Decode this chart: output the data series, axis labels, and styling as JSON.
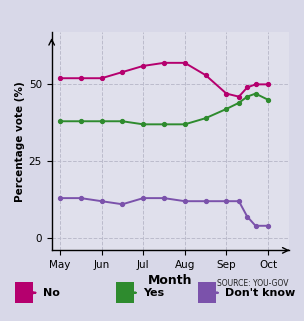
{
  "title": "",
  "xlabel": "Month",
  "ylabel": "Percentage vote (%)",
  "source_text": "SOURCE: YOU-GOV",
  "background_color": "#d8d8e8",
  "plot_bg_color": "#e0e0ec",
  "x_labels": [
    "May",
    "Jun",
    "Jul",
    "Aug",
    "Sep",
    "Oct"
  ],
  "x_numeric": [
    0,
    1,
    2,
    3,
    4,
    5
  ],
  "no_x": [
    0,
    0.5,
    1,
    1.5,
    2,
    2.5,
    3,
    3.5,
    4,
    4.3,
    4.5,
    4.7,
    5
  ],
  "no_y": [
    52,
    52,
    52,
    54,
    56,
    57,
    57,
    53,
    47,
    46,
    49,
    50,
    50
  ],
  "yes_x": [
    0,
    0.5,
    1,
    1.5,
    2,
    2.5,
    3,
    3.5,
    4,
    4.3,
    4.5,
    4.7,
    5
  ],
  "yes_y": [
    38,
    38,
    38,
    38,
    37,
    37,
    37,
    39,
    42,
    44,
    46,
    47,
    45
  ],
  "dk_x": [
    0,
    0.5,
    1,
    1.5,
    2,
    2.5,
    3,
    3.5,
    4,
    4.3,
    4.5,
    4.7,
    5
  ],
  "dk_y": [
    13,
    13,
    12,
    11,
    13,
    13,
    12,
    12,
    12,
    12,
    7,
    4,
    4
  ],
  "no_color": "#b5006e",
  "yes_color": "#2e8b2e",
  "dk_color": "#7b52ab",
  "grid_color": "#bbbbcc",
  "ylim": [
    -4,
    67
  ],
  "yticks": [
    0,
    25,
    50
  ],
  "legend_labels": [
    "No",
    "Yes",
    "Don't know"
  ]
}
